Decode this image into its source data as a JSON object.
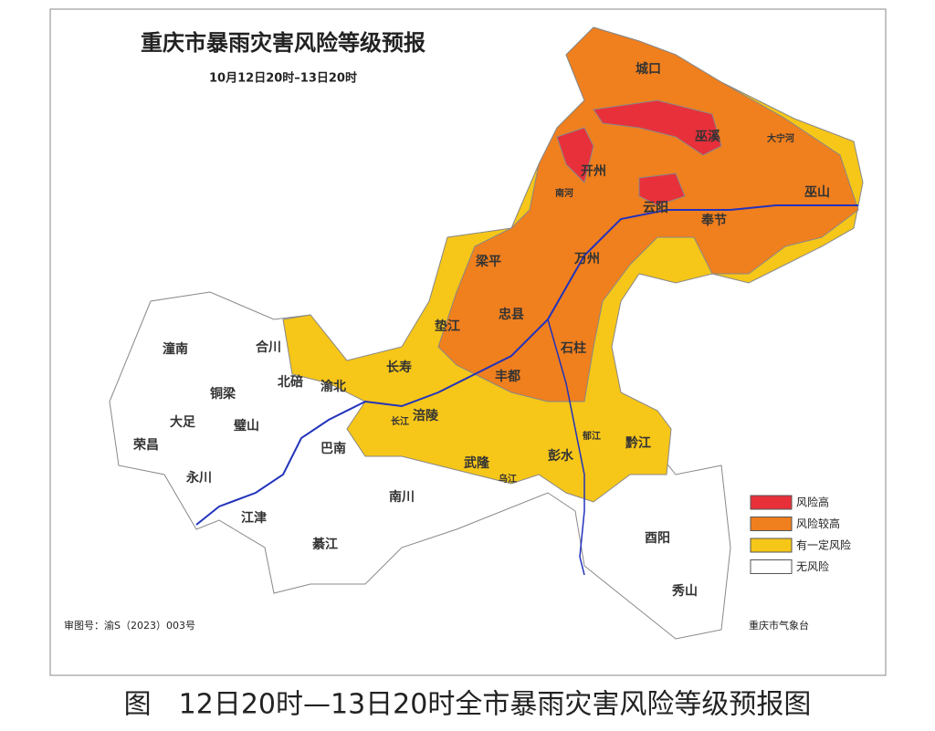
{
  "header": {
    "title": "重庆市暴雨灾害风险等级预报",
    "subtitle": "10月12日20时–13日20时"
  },
  "labels": [
    "城口",
    "巫溪",
    "大宁河",
    "开州",
    "南河",
    "云阳",
    "巫山",
    "奉节",
    "万州",
    "梁平",
    "忠县",
    "垫江",
    "石柱",
    "长寿",
    "丰都",
    "涪陵",
    "长江",
    "北碚",
    "渝北",
    "巴南",
    "潼南",
    "合川",
    "铜梁",
    "大足",
    "璧山",
    "荣昌",
    "永川",
    "江津",
    "綦江",
    "南川",
    "武隆",
    "乌江",
    "彭水",
    "郁江",
    "黔江",
    "酉阳",
    "秀山"
  ],
  "legend": [
    {
      "label": "风险高",
      "color": "#e8303a"
    },
    {
      "label": "风险较高",
      "color": "#f07f1e"
    },
    {
      "label": "有一定风险",
      "color": "#f6c619"
    },
    {
      "label": "无风险",
      "color": "#ffffff"
    }
  ],
  "footer": {
    "approval": "审图号：渝S（2023）003号",
    "agency": "重庆市气象台"
  },
  "caption": "图　12日20时—13日20时全市暴雨灾害风险等级预报图"
}
